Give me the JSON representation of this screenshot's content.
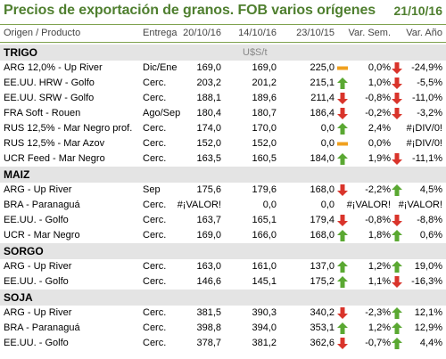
{
  "title": "Precios de exportación de granos. FOB varios orígenes",
  "date": "21/10/16",
  "columns": {
    "product": "Origen / Producto",
    "delivery": "Entrega",
    "d1": "20/10/16",
    "d2": "14/10/16",
    "d3": "23/10/15",
    "var_week": "Var. Sem.",
    "var_year": "Var. Año"
  },
  "unit": "U$S/t",
  "colors": {
    "up": "#5aa832",
    "down": "#d9342b",
    "flat": "#f0a01e",
    "accent": "#4f7f2f"
  },
  "sections": [
    {
      "name": "TRIGO",
      "show_unit": true,
      "rows": [
        {
          "product": "ARG 12,0% - Up River",
          "delivery": "Dic/Ene",
          "d1": "169,0",
          "d2": "169,0",
          "d3": "225,0",
          "i1": "flat",
          "vs": "0,0%",
          "i2": "down",
          "va": "-24,9%"
        },
        {
          "product": "EE.UU. HRW - Golfo",
          "delivery": "Cerc.",
          "d1": "203,2",
          "d2": "201,2",
          "d3": "215,1",
          "i1": "up",
          "vs": "1,0%",
          "i2": "down",
          "va": "-5,5%"
        },
        {
          "product": "EE.UU. SRW - Golfo",
          "delivery": "Cerc.",
          "d1": "188,1",
          "d2": "189,6",
          "d3": "211,4",
          "i1": "down",
          "vs": "-0,8%",
          "i2": "down",
          "va": "-11,0%"
        },
        {
          "product": "FRA Soft - Rouen",
          "delivery": "Ago/Sep",
          "d1": "180,4",
          "d2": "180,7",
          "d3": "186,4",
          "i1": "down",
          "vs": "-0,2%",
          "i2": "down",
          "va": "-3,2%"
        },
        {
          "product": "RUS 12,5% - Mar Negro prof.",
          "delivery": "Cerc.",
          "d1": "174,0",
          "d2": "170,0",
          "d3": "0,0",
          "i1": "up",
          "vs": "2,4%",
          "i2": "",
          "va": "#¡DIV/0!"
        },
        {
          "product": "RUS 12,5% - Mar Azov",
          "delivery": "Cerc.",
          "d1": "152,0",
          "d2": "152,0",
          "d3": "0,0",
          "i1": "flat",
          "vs": "0,0%",
          "i2": "",
          "va": "#¡DIV/0!"
        },
        {
          "product": "UCR Feed - Mar Negro",
          "delivery": "Cerc.",
          "d1": "163,5",
          "d2": "160,5",
          "d3": "184,0",
          "i1": "up",
          "vs": "1,9%",
          "i2": "down",
          "va": "-11,1%"
        }
      ]
    },
    {
      "name": "MAIZ",
      "show_unit": false,
      "rows": [
        {
          "product": "ARG - Up River",
          "delivery": "Sep",
          "d1": "175,6",
          "d2": "179,6",
          "d3": "168,0",
          "i1": "down",
          "vs": "-2,2%",
          "i2": "up",
          "va": "4,5%"
        },
        {
          "product": "BRA - Paranaguá",
          "delivery": "Cerc.",
          "d1": "#¡VALOR!",
          "d2": "0,0",
          "d3": "0,0",
          "i1": "",
          "vs": "#¡VALOR!",
          "i2": "",
          "va": "#¡VALOR!"
        },
        {
          "product": "EE.UU. - Golfo",
          "delivery": "Cerc.",
          "d1": "163,7",
          "d2": "165,1",
          "d3": "179,4",
          "i1": "down",
          "vs": "-0,8%",
          "i2": "down",
          "va": "-8,8%"
        },
        {
          "product": "UCR - Mar Negro",
          "delivery": "Cerc.",
          "d1": "169,0",
          "d2": "166,0",
          "d3": "168,0",
          "i1": "up",
          "vs": "1,8%",
          "i2": "up",
          "va": "0,6%"
        }
      ]
    },
    {
      "name": "SORGO",
      "show_unit": false,
      "rows": [
        {
          "product": "ARG - Up River",
          "delivery": "Cerc.",
          "d1": "163,0",
          "d2": "161,0",
          "d3": "137,0",
          "i1": "up",
          "vs": "1,2%",
          "i2": "up",
          "va": "19,0%"
        },
        {
          "product": "EE.UU. - Golfo",
          "delivery": "Cerc.",
          "d1": "146,6",
          "d2": "145,1",
          "d3": "175,2",
          "i1": "up",
          "vs": "1,1%",
          "i2": "down",
          "va": "-16,3%"
        }
      ]
    },
    {
      "name": "SOJA",
      "show_unit": false,
      "rows": [
        {
          "product": "ARG - Up River",
          "delivery": "Cerc.",
          "d1": "381,5",
          "d2": "390,3",
          "d3": "340,2",
          "i1": "down",
          "vs": "-2,3%",
          "i2": "up",
          "va": "12,1%"
        },
        {
          "product": "BRA - Paranaguá",
          "delivery": "Cerc.",
          "d1": "398,8",
          "d2": "394,0",
          "d3": "353,1",
          "i1": "up",
          "vs": "1,2%",
          "i2": "up",
          "va": "12,9%"
        },
        {
          "product": "EE.UU. - Golfo",
          "delivery": "Cerc.",
          "d1": "378,7",
          "d2": "381,2",
          "d3": "362,6",
          "i1": "down",
          "vs": "-0,7%",
          "i2": "up",
          "va": "4,4%"
        }
      ]
    }
  ]
}
